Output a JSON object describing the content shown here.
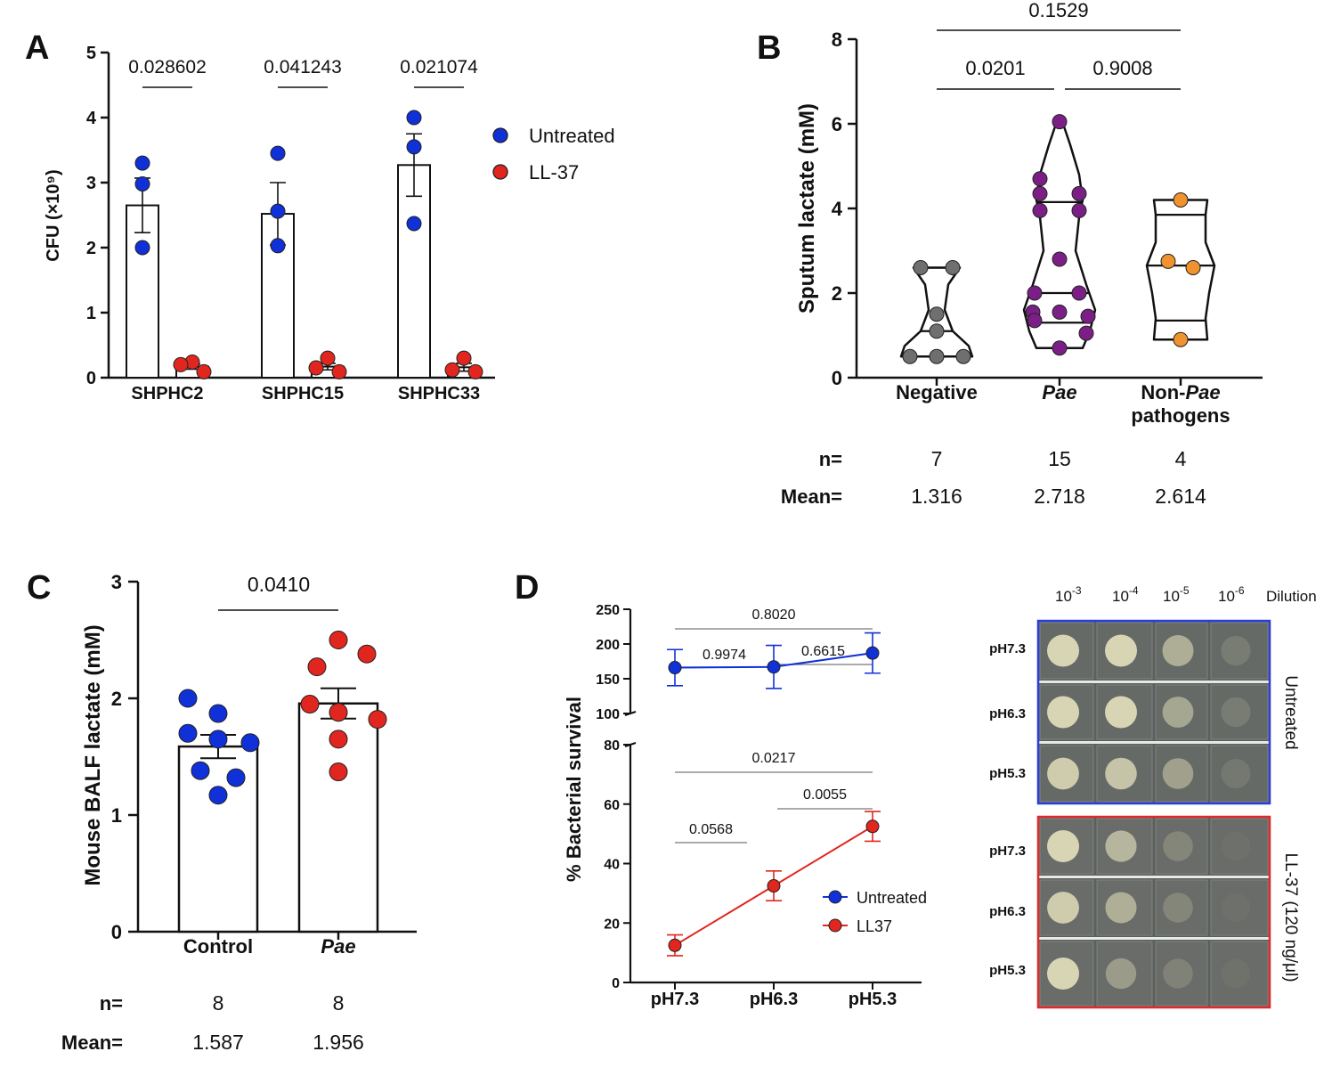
{
  "colors": {
    "untreated": "#1030d8",
    "ll37": "#e0261e",
    "negative": "#6f6f6f",
    "pae": "#7b1f87",
    "nonpae": "#f0922e",
    "plate_untreated_border": "#2a3fd8",
    "plate_ll37_border": "#e02a2a"
  },
  "chart_data": [
    {
      "panel": "A",
      "type": "bar",
      "ylabel": "CFU (×10⁹)",
      "ylim": [
        0,
        5
      ],
      "yticks": [
        "0",
        "1",
        "2",
        "3",
        "4",
        "5"
      ],
      "categories": [
        "SHPHC2",
        "SHPHC15",
        "SHPHC33"
      ],
      "legend": [
        "Untreated",
        "LL-37"
      ],
      "legend_position": "right",
      "series": [
        {
          "name": "Untreated",
          "means": [
            2.65,
            2.52,
            3.27
          ],
          "sem": [
            0.42,
            0.48,
            0.48
          ],
          "points": [
            [
              3.3,
              2.98,
              2.0
            ],
            [
              3.45,
              2.56,
              2.03
            ],
            [
              4.0,
              3.55,
              2.37
            ]
          ]
        },
        {
          "name": "LL-37",
          "means": [
            0.17,
            0.17,
            0.16
          ],
          "sem": [
            0.04,
            0.05,
            0.06
          ],
          "points": [
            [
              0.24,
              0.2,
              0.09
            ],
            [
              0.3,
              0.15,
              0.09
            ],
            [
              0.3,
              0.12,
              0.09
            ]
          ]
        }
      ],
      "pvalues": [
        "0.028602",
        "0.041243",
        "0.021074"
      ]
    },
    {
      "panel": "B",
      "type": "violin",
      "ylabel": "Sputum lactate (mM)",
      "ylim": [
        0,
        8
      ],
      "yticks": [
        "0",
        "2",
        "4",
        "6",
        "8"
      ],
      "groups": [
        {
          "label": "Negative",
          "italic": false,
          "n": "7",
          "mean": "1.316",
          "points": [
            2.6,
            2.6,
            1.5,
            1.1,
            0.5,
            0.5,
            0.5
          ],
          "quartiles": [
            0.5,
            1.1,
            2.6
          ]
        },
        {
          "label_parts": [
            "Pae"
          ],
          "italic": true,
          "n": "15",
          "mean": "2.718",
          "points": [
            6.05,
            4.7,
            4.35,
            4.35,
            3.95,
            3.95,
            2.8,
            2.0,
            2.0,
            1.55,
            1.55,
            1.45,
            1.35,
            1.05,
            0.7
          ],
          "quartiles": [
            1.3,
            2.0,
            4.15
          ]
        },
        {
          "label_parts": [
            "Non-",
            "Pae",
            "pathogens"
          ],
          "n": "4",
          "mean": "2.614",
          "points": [
            4.2,
            2.75,
            2.6,
            0.9
          ],
          "quartiles": [
            1.35,
            2.65,
            3.85
          ]
        }
      ],
      "comparisons": [
        {
          "groups": [
            "Negative",
            "Pae"
          ],
          "p": "0.0201"
        },
        {
          "groups": [
            "Pae",
            "Non-Pae pathogens"
          ],
          "p": "0.9008"
        },
        {
          "groups": [
            "Negative",
            "Non-Pae pathogens"
          ],
          "p": "0.1529"
        }
      ],
      "n_label": "n=",
      "mean_label": "Mean="
    },
    {
      "panel": "C",
      "type": "bar",
      "ylabel": "Mouse BALF  lactate (mM)",
      "ylim": [
        0,
        3
      ],
      "yticks": [
        "0",
        "1",
        "2",
        "3"
      ],
      "categories": [
        "Control",
        "Pae"
      ],
      "category_italic": [
        false,
        true
      ],
      "means": [
        1.587,
        1.956
      ],
      "sem": [
        0.1,
        0.13
      ],
      "points": [
        [
          2.0,
          1.87,
          1.7,
          1.65,
          1.62,
          1.38,
          1.32,
          1.17
        ],
        [
          2.5,
          2.38,
          2.27,
          1.95,
          1.88,
          1.82,
          1.65,
          1.37
        ]
      ],
      "colors_key": [
        "untreated",
        "ll37"
      ],
      "pvalue": "0.0410",
      "n": [
        "8",
        "8"
      ],
      "mean_text": [
        "1.587",
        "1.956"
      ],
      "n_label": "n=",
      "mean_label": "Mean="
    },
    {
      "panel": "D",
      "type": "line",
      "ylabel": "% Bacterial survival",
      "y_axis_break": true,
      "upper_ylim": [
        100,
        250
      ],
      "upper_yticks": [
        "100",
        "150",
        "200",
        "250"
      ],
      "lower_ylim": [
        0,
        80
      ],
      "lower_yticks": [
        "0",
        "20",
        "40",
        "60",
        "80"
      ],
      "categories": [
        "pH7.3",
        "pH6.3",
        "pH5.3"
      ],
      "legend_position": "lower-right",
      "series": [
        {
          "name": "Untreated",
          "values": [
            166,
            167,
            187
          ],
          "sem": [
            26,
            31,
            29
          ]
        },
        {
          "name": "LL37",
          "values": [
            12.5,
            32.5,
            52.5
          ],
          "sem": [
            3.5,
            5,
            5
          ]
        }
      ],
      "upper_comparisons": [
        {
          "pair": [
            "pH7.3",
            "pH6.3"
          ],
          "p": "0.9974"
        },
        {
          "pair": [
            "pH6.3",
            "pH5.3"
          ],
          "p": "0.6615"
        },
        {
          "pair": [
            "pH7.3",
            "pH5.3"
          ],
          "p": "0.8020"
        }
      ],
      "lower_comparisons": [
        {
          "pair": [
            "pH7.3",
            "pH6.3"
          ],
          "p": "0.0568"
        },
        {
          "pair": [
            "pH6.3",
            "pH5.3"
          ],
          "p": "0.0055"
        },
        {
          "pair": [
            "pH7.3",
            "pH5.3"
          ],
          "p": "0.0217"
        }
      ]
    }
  ],
  "panel_letters": [
    "A",
    "B",
    "C",
    "D"
  ],
  "plates": {
    "dilution_base": "10",
    "dilution_exponents": [
      "-3",
      "-4",
      "-5",
      "-6"
    ],
    "dilution_label": "Dilution",
    "row_labels": [
      "pH7.3",
      "pH6.3",
      "pH5.3"
    ],
    "groups": [
      "Untreated",
      "LL-37 (120 ng/μl)"
    ]
  }
}
